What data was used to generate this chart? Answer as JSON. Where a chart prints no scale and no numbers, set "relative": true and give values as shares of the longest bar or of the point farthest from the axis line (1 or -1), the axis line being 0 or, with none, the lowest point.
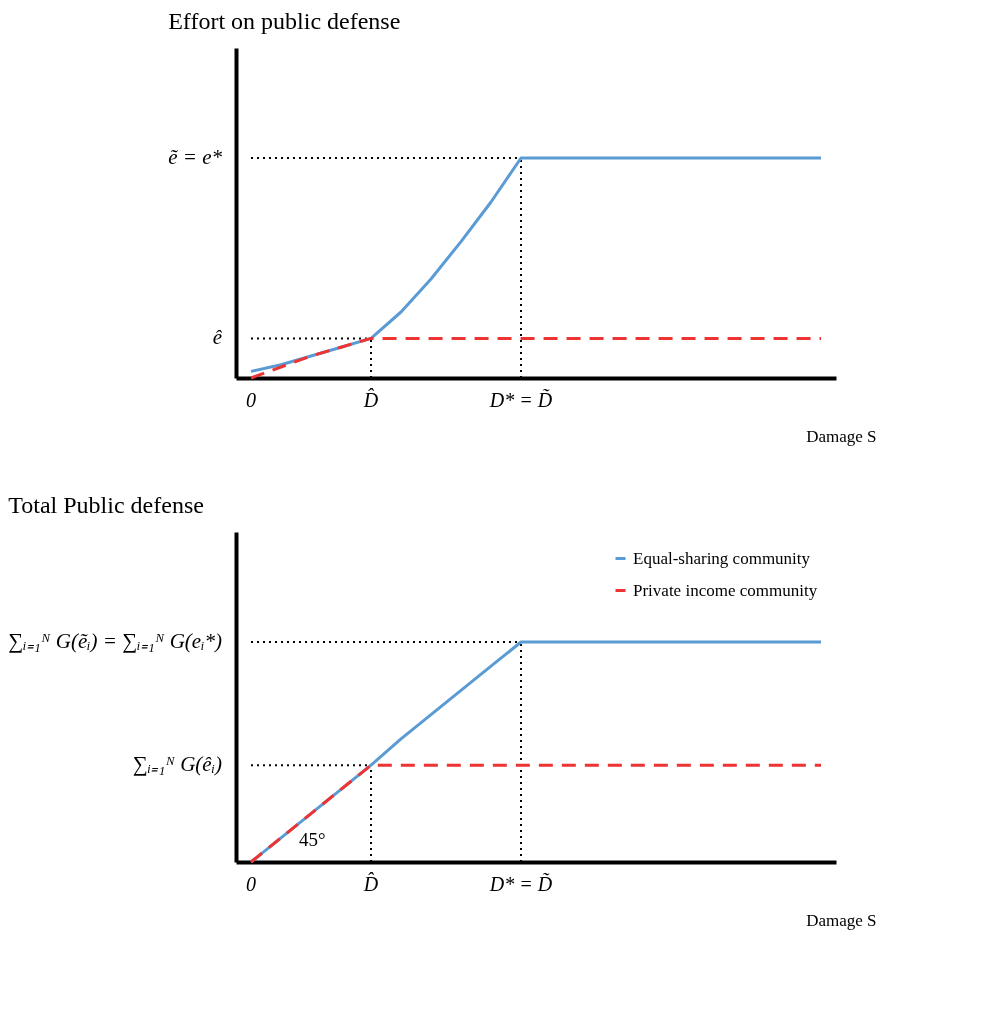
{
  "chart_data": [
    {
      "type": "line",
      "title": "Effort on public defense",
      "xlabel": "Damage S",
      "relative": true,
      "categories": [
        "0",
        null,
        null,
        null,
        "D̂",
        null,
        null,
        null,
        null,
        "D* = D̃",
        null,
        null,
        null,
        null,
        null,
        null,
        null,
        null,
        null,
        null
      ],
      "series": [
        {
          "color": "#5b9bd5",
          "line_style": "solid",
          "values": [
            0.03,
            0.06,
            0.1,
            0.14,
            0.18,
            0.3,
            0.45,
            0.62,
            0.8,
            1,
            1,
            1,
            1,
            1,
            1,
            1,
            1,
            1,
            1,
            1
          ]
        },
        {
          "color": "#ee3333",
          "line_style": "dashed",
          "values": [
            0,
            0.05,
            0.1,
            0.14,
            0.18,
            0.18,
            0.18,
            0.18,
            0.18,
            0.18,
            0.18,
            0.18,
            0.18,
            0.18,
            0.18,
            0.18,
            0.18,
            0.18,
            0.18,
            0.18
          ]
        }
      ],
      "ref_lines": [
        {
          "axis": "y",
          "value": 0.18,
          "label": "ê",
          "color": "#000000",
          "line_style": "dotted"
        },
        {
          "axis": "y",
          "value": 1,
          "label": "ẽ = e*",
          "color": "#000000",
          "line_style": "dotted"
        },
        {
          "axis": "x",
          "value": "D̂",
          "color": "#000000",
          "line_style": "dotted"
        },
        {
          "axis": "x",
          "value": "D* = D̃",
          "color": "#000000",
          "line_style": "dotted"
        }
      ],
      "grid": false,
      "legend": false
    },
    {
      "type": "line",
      "title": "Total Public defense",
      "xlabel": "Damage S",
      "relative": true,
      "categories": [
        "0",
        null,
        null,
        null,
        "D̂",
        null,
        null,
        null,
        null,
        "D* = D̃",
        null,
        null,
        null,
        null,
        null,
        null,
        null,
        null,
        null,
        null
      ],
      "series": [
        {
          "name": "Equal-sharing community",
          "color": "#5b9bd5",
          "line_style": "solid",
          "values": [
            0,
            0.11,
            0.22,
            0.33,
            0.44,
            0.56,
            0.67,
            0.78,
            0.89,
            1,
            1,
            1,
            1,
            1,
            1,
            1,
            1,
            1,
            1,
            1
          ]
        },
        {
          "name": "Private income community",
          "color": "#ee3333",
          "line_style": "dashed",
          "values": [
            0,
            0.11,
            0.22,
            0.33,
            0.44,
            0.44,
            0.44,
            0.44,
            0.44,
            0.44,
            0.44,
            0.44,
            0.44,
            0.44,
            0.44,
            0.44,
            0.44,
            0.44,
            0.44,
            0.44
          ]
        }
      ],
      "ref_lines": [
        {
          "axis": "y",
          "value": 0.44,
          "label": "∑ᵢ₌₁ᴺ G(êᵢ)",
          "color": "#000000",
          "line_style": "dotted"
        },
        {
          "axis": "y",
          "value": 1,
          "label": "∑ᵢ₌₁ᴺ G(ẽᵢ) = ∑ᵢ₌₁ᴺ G(eᵢ*)",
          "color": "#000000",
          "line_style": "dotted"
        },
        {
          "axis": "x",
          "value": "D̂",
          "color": "#000000",
          "line_style": "dotted"
        },
        {
          "axis": "x",
          "value": "D* = D̃",
          "color": "#000000",
          "line_style": "dotted"
        }
      ],
      "annotations": [
        "45°"
      ],
      "grid": false,
      "legend": "top right"
    }
  ]
}
